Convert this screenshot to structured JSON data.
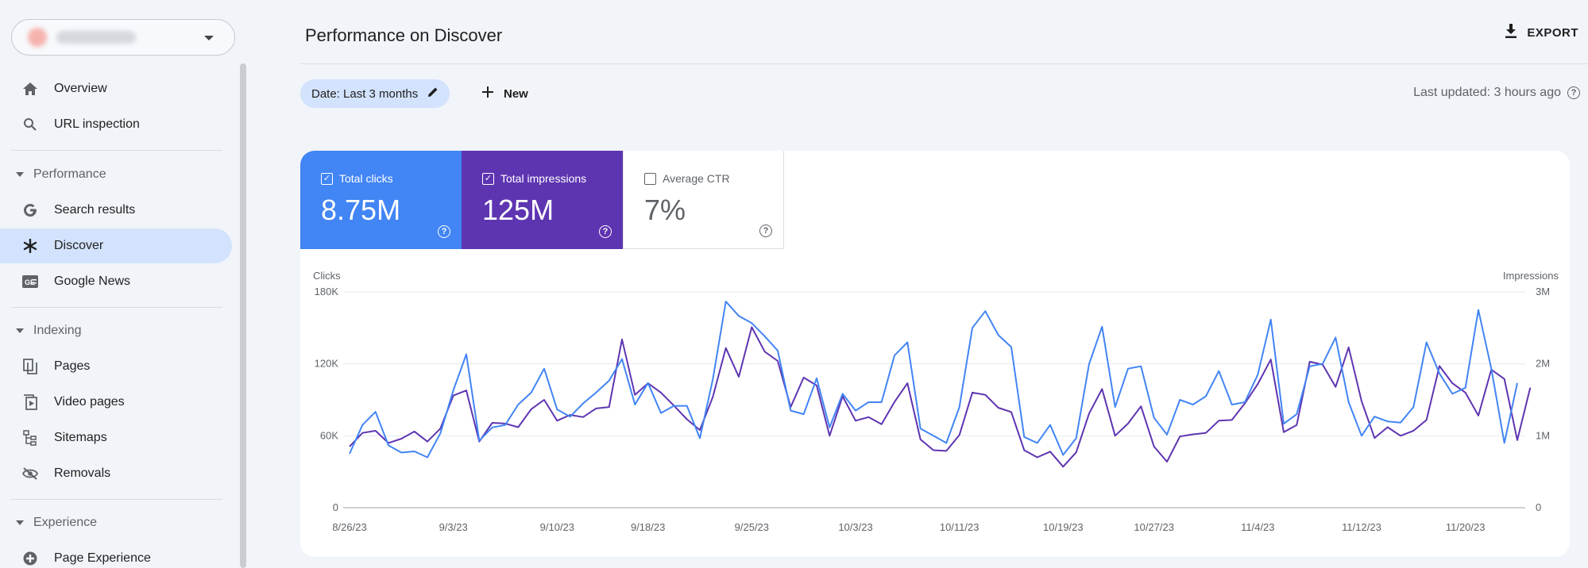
{
  "sidebar": {
    "items": [
      {
        "label": "Overview",
        "icon": "home-icon"
      },
      {
        "label": "URL inspection",
        "icon": "search-icon"
      }
    ],
    "sections": [
      {
        "title": "Performance",
        "items": [
          {
            "label": "Search results",
            "icon": "google-g-icon"
          },
          {
            "label": "Discover",
            "icon": "asterisk-icon",
            "active": true
          },
          {
            "label": "Google News",
            "icon": "news-icon"
          }
        ]
      },
      {
        "title": "Indexing",
        "items": [
          {
            "label": "Pages",
            "icon": "pages-icon"
          },
          {
            "label": "Video pages",
            "icon": "video-pages-icon"
          },
          {
            "label": "Sitemaps",
            "icon": "sitemap-icon"
          },
          {
            "label": "Removals",
            "icon": "removals-icon"
          }
        ]
      },
      {
        "title": "Experience",
        "items": [
          {
            "label": "Page Experience",
            "icon": "page-experience-icon"
          }
        ]
      }
    ]
  },
  "header": {
    "title": "Performance on Discover",
    "export_label": "EXPORT"
  },
  "filters": {
    "date_chip": "Date: Last 3 months",
    "new_label": "New",
    "last_updated": "Last updated: 3 hours ago"
  },
  "metrics": {
    "clicks": {
      "label": "Total clicks",
      "value": "8.75M",
      "checked": true,
      "color": "#4285f4"
    },
    "impressions": {
      "label": "Total impressions",
      "value": "125M",
      "checked": true,
      "color": "#5e35b1"
    },
    "ctr": {
      "label": "Average CTR",
      "value": "7%",
      "checked": false
    }
  },
  "chart_data": {
    "type": "line",
    "left_axis_label": "Clicks",
    "right_axis_label": "Impressions",
    "left_ticks": [
      "180K",
      "120K",
      "60K",
      "0"
    ],
    "right_ticks": [
      "3M",
      "2M",
      "1M",
      "0"
    ],
    "ylim_left": [
      0,
      180000
    ],
    "ylim_right": [
      0,
      3000000
    ],
    "x_tick_labels": [
      "8/26/23",
      "9/3/23",
      "9/10/23",
      "9/18/23",
      "9/25/23",
      "10/3/23",
      "10/11/23",
      "10/19/23",
      "10/27/23",
      "11/4/23",
      "11/12/23",
      "11/20/23"
    ],
    "grid": true,
    "series": [
      {
        "name": "Clicks",
        "axis": "left",
        "color": "#4285f4",
        "values": [
          45000,
          69000,
          80000,
          52000,
          46000,
          47000,
          42000,
          62000,
          98000,
          128000,
          56000,
          67000,
          69000,
          86000,
          96000,
          116000,
          82000,
          76000,
          87000,
          96000,
          106000,
          124000,
          86000,
          104000,
          79000,
          85000,
          85000,
          58000,
          107000,
          172000,
          160000,
          154000,
          143000,
          131000,
          81000,
          78000,
          108000,
          67000,
          95000,
          81000,
          88000,
          88000,
          127000,
          138000,
          66000,
          60000,
          54000,
          84000,
          150000,
          164000,
          144000,
          134000,
          59000,
          54000,
          69000,
          44000,
          58000,
          120000,
          151000,
          84000,
          116000,
          118000,
          75000,
          61000,
          90000,
          86000,
          93000,
          114000,
          86000,
          88000,
          111000,
          157000,
          70000,
          78000,
          118000,
          120000,
          142000,
          88000,
          60000,
          76000,
          72000,
          71000,
          84000,
          138000,
          112000,
          95000,
          100000,
          165000,
          116000,
          54000,
          104000
        ]
      },
      {
        "name": "Impressions",
        "axis": "right",
        "color": "#5e35b1",
        "values": [
          850000,
          1040000,
          1070000,
          900000,
          960000,
          1060000,
          920000,
          1100000,
          1560000,
          1630000,
          920000,
          1180000,
          1170000,
          1120000,
          1370000,
          1500000,
          1210000,
          1290000,
          1260000,
          1380000,
          1400000,
          2340000,
          1570000,
          1730000,
          1600000,
          1420000,
          1230000,
          1080000,
          1540000,
          2220000,
          1820000,
          2510000,
          2170000,
          2040000,
          1400000,
          1810000,
          1700000,
          1000000,
          1550000,
          1210000,
          1260000,
          1160000,
          1470000,
          1730000,
          950000,
          800000,
          790000,
          1010000,
          1600000,
          1570000,
          1390000,
          1330000,
          800000,
          700000,
          780000,
          570000,
          770000,
          1310000,
          1650000,
          1000000,
          1170000,
          1410000,
          850000,
          640000,
          990000,
          1020000,
          1040000,
          1210000,
          1220000,
          1450000,
          1720000,
          2060000,
          1050000,
          1150000,
          2030000,
          1990000,
          1680000,
          2230000,
          1480000,
          970000,
          1120000,
          1000000,
          1070000,
          1220000,
          1970000,
          1730000,
          1600000,
          1280000,
          1920000,
          1790000,
          940000,
          1670000
        ]
      }
    ]
  }
}
